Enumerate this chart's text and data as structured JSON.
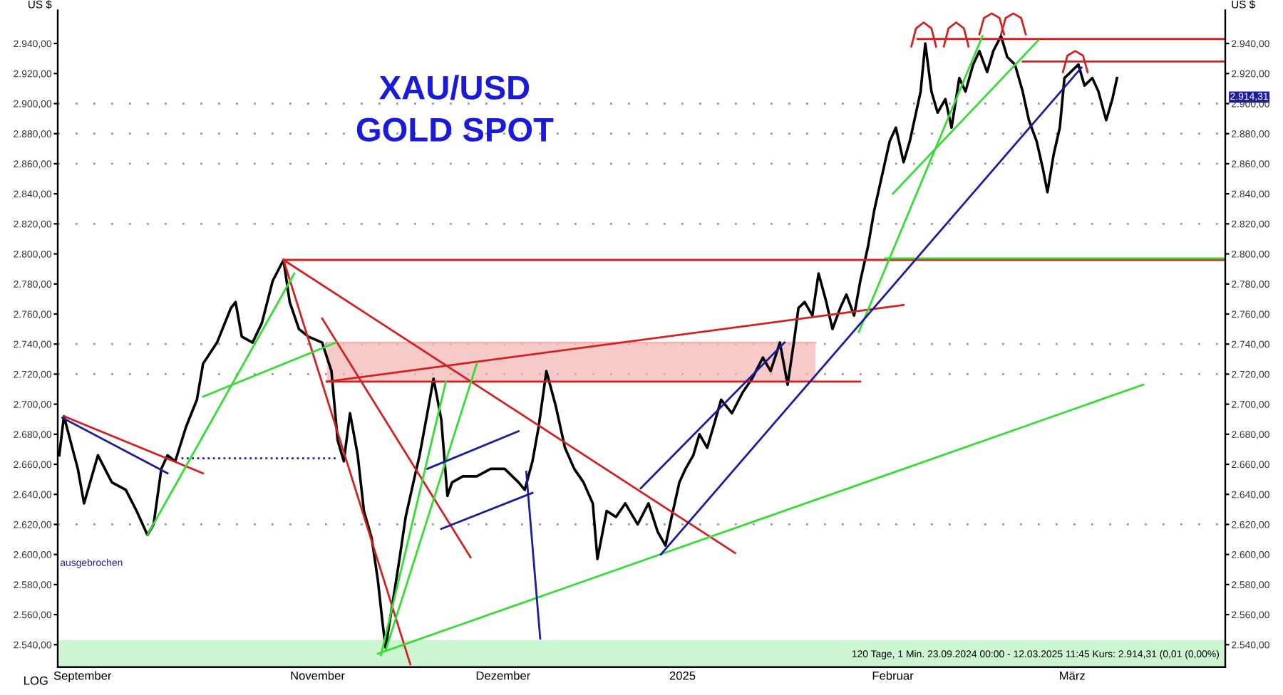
{
  "chart_data": {
    "type": "line",
    "title": "XAU/USD",
    "subtitle": "GOLD SPOT",
    "ylabel": "US $",
    "y2label": "US $",
    "xlim": [
      "2024-09-23",
      "2025-03-30T18:00"
    ],
    "ylim": [
      2525,
      2962
    ],
    "y2lim": [
      2525,
      2962
    ],
    "xticks": [
      {
        "value": "2024-09-27",
        "label": "September"
      },
      {
        "value": "2024-11-04",
        "label": "November"
      },
      {
        "value": "2024-12-04",
        "label": "Dezember"
      },
      {
        "value": "2025-01-02",
        "label": "2025"
      },
      {
        "value": "2025-02-05",
        "label": "Februar"
      },
      {
        "value": "2025-03-06",
        "label": "März"
      }
    ],
    "yticks": [
      {
        "value": 2540,
        "label": "2.540,00"
      },
      {
        "value": 2560,
        "label": "2.560,00"
      },
      {
        "value": 2580,
        "label": "2.580,00"
      },
      {
        "value": 2600,
        "label": "2.600,00"
      },
      {
        "value": 2620,
        "label": "2.620,00"
      },
      {
        "value": 2640,
        "label": "2.640,00"
      },
      {
        "value": 2660,
        "label": "2.660,00"
      },
      {
        "value": 2680,
        "label": "2.680,00"
      },
      {
        "value": 2700,
        "label": "2.700,00"
      },
      {
        "value": 2720,
        "label": "2.720,00"
      },
      {
        "value": 2740,
        "label": "2.740,00"
      },
      {
        "value": 2760,
        "label": "2.760,00"
      },
      {
        "value": 2780,
        "label": "2.780,00"
      },
      {
        "value": 2800,
        "label": "2.800,00"
      },
      {
        "value": 2820,
        "label": "2.820,00"
      },
      {
        "value": 2840,
        "label": "2.840,00"
      },
      {
        "value": 2860,
        "label": "2.860,00"
      },
      {
        "value": 2880,
        "label": "2.880,00"
      },
      {
        "value": 2900,
        "label": "2.900,00"
      },
      {
        "value": 2920,
        "label": "2.920,00"
      },
      {
        "value": 2940,
        "label": "2.940,00"
      }
    ],
    "y2ticks": [
      {
        "value": 2540,
        "label": "2.540,00"
      },
      {
        "value": 2560,
        "label": "2.560,00"
      },
      {
        "value": 2580,
        "label": "2.580,00"
      },
      {
        "value": 2600,
        "label": "2.600,00"
      },
      {
        "value": 2620,
        "label": "2.620,00"
      },
      {
        "value": 2640,
        "label": "2.640,00"
      },
      {
        "value": 2660,
        "label": "2.660,00"
      },
      {
        "value": 2680,
        "label": "2.680,00"
      },
      {
        "value": 2700,
        "label": "2.700,00"
      },
      {
        "value": 2720,
        "label": "2.720,00"
      },
      {
        "value": 2740,
        "label": "2.740,00"
      },
      {
        "value": 2760,
        "label": "2.760,00"
      },
      {
        "value": 2780,
        "label": "2.780,00"
      },
      {
        "value": 2800,
        "label": "2.800,00"
      },
      {
        "value": 2820,
        "label": "2.820,00"
      },
      {
        "value": 2840,
        "label": "2.840,00"
      },
      {
        "value": 2860,
        "label": "2.860,00"
      },
      {
        "value": 2880,
        "label": "2.880,00"
      },
      {
        "value": 2900,
        "label": "2.900,00"
      },
      {
        "value": 2920,
        "label": "2.920,00"
      },
      {
        "value": 2940,
        "label": "2.940,00"
      }
    ],
    "bands": [
      {
        "axis": "y",
        "from": 2525,
        "to": 2543,
        "color": "#ccf5d2"
      }
    ],
    "ref_lines": [
      {
        "axis": "y",
        "value": 2620,
        "color": "#999999",
        "line_style": "dotted"
      },
      {
        "axis": "y",
        "value": 2720,
        "color": "#999999",
        "line_style": "dotted"
      },
      {
        "axis": "y",
        "value": 2740,
        "color": "#999999",
        "line_style": "dotted"
      },
      {
        "axis": "y",
        "value": 2820,
        "color": "#999999",
        "line_style": "dotted"
      },
      {
        "axis": "y",
        "value": 2860,
        "color": "#999999",
        "line_style": "dotted"
      },
      {
        "axis": "y",
        "value": 2880,
        "color": "#999999",
        "line_style": "dotted"
      },
      {
        "axis": "y",
        "value": 2900,
        "color": "#999999",
        "line_style": "dotted"
      }
    ],
    "annotations": [
      "LOG",
      "120 Tage, 1 Min. 23.09.2024 00:00 - 12.03.2025 11:45 Kurs: 2.914,31 (0,01 (0,00%)",
      "2.914,31",
      "ausgebrochen"
    ],
    "series": [
      {
        "color": "#f4b4b4",
        "x": [
          "2024-11-05T12:00",
          "2025-01-23T12:00"
        ],
        "values": [
          2741,
          2741
        ],
        "lower": [
          2715,
          2715
        ],
        "upper": [
          2741,
          2741
        ]
      },
      {
        "color": "#000000",
        "x": [
          "2024-09-23T06:00",
          "2024-09-24",
          "2024-09-26T06:00",
          "2024-09-27T06:00",
          "2024-09-29T12:00",
          "2024-10-01T18:00",
          "2024-10-04",
          "2024-10-05T18:00",
          "2024-10-07T12:00",
          "2024-10-08T12:00",
          "2024-10-09T18:00",
          "2024-10-10T18:00",
          "2024-10-12",
          "2024-10-13T18:00",
          "2024-10-15T12:00",
          "2024-10-16T12:00",
          "2024-10-18T18:00",
          "2024-10-21",
          "2024-10-21T18:00",
          "2024-10-22T18:00",
          "2024-10-24T12:00",
          "2024-10-26",
          "2024-10-27T18:00",
          "2024-10-29T12:00",
          "2024-10-30T12:00",
          "2024-11-01",
          "2024-11-02T12:00",
          "2024-11-04T18:00",
          "2024-11-06T06:00",
          "2024-11-07T06:00",
          "2024-11-08T06:00",
          "2024-11-09T06:00",
          "2024-11-10T12:00",
          "2024-11-11T12:00",
          "2024-11-12T18:00",
          "2024-11-13T18:00",
          "2024-11-14T12:00",
          "2024-11-15",
          "2024-11-16",
          "2024-11-17T06:00",
          "2024-11-18T06:00",
          "2024-11-19T12:00",
          "2024-11-20T12:00",
          "2024-11-21T18:00",
          "2024-11-22T18:00",
          "2024-11-24",
          "2024-11-25",
          "2024-11-25T18:00",
          "2024-11-27T12:00",
          "2024-11-29T18:00",
          "2024-12-02",
          "2024-12-04T06:00",
          "2024-12-06T12:00",
          "2024-12-07T12:00",
          "2024-12-08T18:00",
          "2024-12-09T18:00",
          "2024-12-11",
          "2024-12-12T12:00",
          "2024-12-14",
          "2024-12-15T12:00",
          "2024-12-17",
          "2024-12-18T12:00",
          "2024-12-19T06:00",
          "2024-12-20T18:00",
          "2024-12-22T06:00",
          "2024-12-23T18:00",
          "2024-12-25T18:00",
          "2024-12-27T12:00",
          "2024-12-29",
          "2024-12-30T06:00",
          "2024-12-31T06:00",
          "2025-01-01T12:00",
          "2025-01-02T12:00",
          "2025-01-03T18:00",
          "2025-01-04T18:00",
          "2025-01-06",
          "2025-01-07",
          "2025-01-08T06:00",
          "2025-01-10",
          "2025-01-11T18:00",
          "2025-01-13T06:00",
          "2025-01-15",
          "2025-01-16T06:00",
          "2025-01-17T18:00",
          "2025-01-19",
          "2025-01-20",
          "2025-01-20T18:00",
          "2025-01-21T18:00",
          "2025-01-23",
          "2025-01-24",
          "2025-01-25T06:00",
          "2025-01-26T06:00",
          "2025-01-27T12:00",
          "2025-01-28T12:00",
          "2025-01-29T18:00",
          "2025-01-30T18:00",
          "2025-02-01",
          "2025-02-02",
          "2025-02-03T06:00",
          "2025-02-04T12:00",
          "2025-02-05T12:00",
          "2025-02-06T18:00",
          "2025-02-07T18:00",
          "2025-02-09T12:00",
          "2025-02-10T06:00",
          "2025-02-11T06:00",
          "2025-02-12T06:00",
          "2025-02-13T12:00",
          "2025-02-14T12:00",
          "2025-02-15T18:00",
          "2025-02-16T18:00",
          "2025-02-18",
          "2025-02-19",
          "2025-02-20T06:00",
          "2025-02-21T06:00",
          "2025-02-22T12:00",
          "2025-02-23T12:00",
          "2025-02-24T18:00",
          "2025-02-26",
          "2025-02-27",
          "2025-02-28T06:00",
          "2025-03-01T06:00",
          "2025-03-02",
          "2025-03-03",
          "2025-03-04",
          "2025-03-04T18:00",
          "2025-03-05T18:00",
          "2025-03-07",
          "2025-03-08",
          "2025-03-09T06:00",
          "2025-03-10T06:00",
          "2025-03-11T12:00",
          "2025-03-12T12:00",
          "2025-03-13T06:00"
        ],
        "values": [
          2666,
          2692,
          2657,
          2634,
          2666,
          2648,
          2643,
          2629,
          2613,
          2620,
          2657,
          2666,
          2662,
          2685,
          2703,
          2727,
          2741,
          2764,
          2768,
          2745,
          2741,
          2754,
          2782,
          2796,
          2768,
          2750,
          2745,
          2741,
          2722,
          2676,
          2662,
          2694,
          2666,
          2629,
          2611,
          2583,
          2555,
          2538,
          2564,
          2597,
          2625,
          2648,
          2666,
          2694,
          2717,
          2690,
          2639,
          2648,
          2652,
          2652,
          2657,
          2657,
          2648,
          2643,
          2662,
          2685,
          2722,
          2699,
          2671,
          2657,
          2648,
          2634,
          2597,
          2629,
          2625,
          2634,
          2620,
          2634,
          2615,
          2606,
          2625,
          2648,
          2657,
          2666,
          2680,
          2671,
          2685,
          2703,
          2694,
          2708,
          2717,
          2731,
          2722,
          2741,
          2713,
          2741,
          2764,
          2768,
          2759,
          2787,
          2768,
          2750,
          2764,
          2773,
          2759,
          2782,
          2805,
          2829,
          2852,
          2875,
          2884,
          2861,
          2875,
          2908,
          2940,
          2908,
          2894,
          2903,
          2884,
          2917,
          2908,
          2926,
          2935,
          2921,
          2935,
          2945,
          2931,
          2926,
          2908,
          2889,
          2875,
          2857,
          2841,
          2866,
          2884,
          2917,
          2921,
          2926,
          2912,
          2917,
          2908,
          2889,
          2903,
          2917
        ]
      },
      {
        "color": "#d42020",
        "x": [
          "2024-09-24",
          "2024-10-16T12:00"
        ],
        "values": [
          2692,
          2654
        ]
      },
      {
        "color": "#d42020",
        "x": [
          "2024-10-29T12:00",
          "2025-03-30T18:00"
        ],
        "values": [
          2796,
          2796
        ]
      },
      {
        "color": "#d42020",
        "x": [
          "2024-10-29T12:00",
          "2025-01-10T12:00"
        ],
        "values": [
          2796,
          2601
        ]
      },
      {
        "color": "#d42020",
        "x": [
          "2024-10-29T12:00",
          "2024-11-19"
        ],
        "values": [
          2796,
          2527
        ]
      },
      {
        "color": "#d42020",
        "x": [
          "2024-11-04T18:00",
          "2024-11-28T18:00"
        ],
        "values": [
          2757,
          2598
        ]
      },
      {
        "color": "#d42020",
        "x": [
          "2024-11-05T12:00",
          "2025-01-30T18:00"
        ],
        "values": [
          2715,
          2715
        ]
      },
      {
        "color": "#d42020",
        "x": [
          "2024-11-05T12:00",
          "2025-02-06T18:00"
        ],
        "values": [
          2715,
          2766
        ]
      },
      {
        "color": "#d42020",
        "x": [
          "2025-02-09",
          "2025-03-30T18:00"
        ],
        "values": [
          2943,
          2943
        ]
      },
      {
        "color": "#d42020",
        "x": [
          "2025-02-26",
          "2025-03-30T18:00"
        ],
        "values": [
          2928,
          2928
        ]
      },
      {
        "color": "#d42020",
        "x": [
          "2025-02-08",
          "2025-02-08T18:00",
          "2025-02-10",
          "2025-02-11T06:00",
          "2025-02-12"
        ],
        "values": [
          2938,
          2950,
          2954,
          2950,
          2938
        ]
      },
      {
        "color": "#d42020",
        "x": [
          "2025-02-13T06:00",
          "2025-02-14",
          "2025-02-15T06:00",
          "2025-02-16T12:00",
          "2025-02-17T06:00"
        ],
        "values": [
          2938,
          2950,
          2954,
          2950,
          2938
        ]
      },
      {
        "color": "#d42020",
        "x": [
          "2025-02-19",
          "2025-02-19T18:00",
          "2025-02-21",
          "2025-02-22T06:00",
          "2025-02-23"
        ],
        "values": [
          2946,
          2957,
          2960,
          2957,
          2946
        ]
      },
      {
        "color": "#d42020",
        "x": [
          "2025-02-22T12:00",
          "2025-02-23T06:00",
          "2025-02-24T12:00",
          "2025-02-25T18:00",
          "2025-02-26T12:00"
        ],
        "values": [
          2946,
          2957,
          2960,
          2957,
          2946
        ]
      },
      {
        "color": "#d42020",
        "x": [
          "2025-03-04T12:00",
          "2025-03-05T06:00",
          "2025-03-06T12:00",
          "2025-03-07T18:00",
          "2025-03-08T12:00"
        ],
        "values": [
          2921,
          2932,
          2935,
          2932,
          2921
        ]
      },
      {
        "color": "#33dd33",
        "x": [
          "2024-10-07T12:00",
          "2024-10-31T06:00"
        ],
        "values": [
          2613,
          2787
        ]
      },
      {
        "color": "#33dd33",
        "x": [
          "2024-10-16T12:00",
          "2024-11-07"
        ],
        "values": [
          2705,
          2741
        ]
      },
      {
        "color": "#33dd33",
        "x": [
          "2024-11-15",
          "2024-11-29T18:00"
        ],
        "values": [
          2536,
          2727
        ]
      },
      {
        "color": "#33dd33",
        "x": [
          "2024-11-14T06:00",
          "2024-11-24T18:00"
        ],
        "values": [
          2533,
          2715
        ]
      },
      {
        "color": "#33dd33",
        "x": [
          "2024-11-13T18:00",
          "2025-03-17T12:00"
        ],
        "values": [
          2534,
          2713
        ]
      },
      {
        "color": "#33dd33",
        "x": [
          "2025-01-30T12:00",
          "2025-02-19T12:00"
        ],
        "values": [
          2748,
          2945
        ]
      },
      {
        "color": "#33dd33",
        "x": [
          "2025-02-05",
          "2025-02-28T12:00"
        ],
        "values": [
          2840,
          2942
        ]
      },
      {
        "color": "#33dd33",
        "x": [
          "2025-02-03T18:00",
          "2025-03-30T18:00"
        ],
        "values": [
          2797,
          2797
        ]
      },
      {
        "color": "#1c1ca0",
        "x": [
          "2024-09-23T18:00",
          "2024-10-10T18:00"
        ],
        "values": [
          2691,
          2654
        ]
      },
      {
        "color": "#1c1ca0",
        "line_style": "dotted",
        "x": [
          "2024-10-13",
          "2024-11-07"
        ],
        "values": [
          2664,
          2664
        ]
      },
      {
        "color": "#1c1ca0",
        "x": [
          "2024-11-21T18:00",
          "2024-12-06T12:00"
        ],
        "values": [
          2657,
          2682
        ]
      },
      {
        "color": "#1c1ca0",
        "x": [
          "2024-11-24",
          "2024-12-08T18:00"
        ],
        "values": [
          2617,
          2641
        ]
      },
      {
        "color": "#1c1ca0",
        "x": [
          "2024-12-07T18:00",
          "2024-12-10"
        ],
        "values": [
          2655,
          2544
        ]
      },
      {
        "color": "#1c1ca0",
        "x": [
          "2024-12-26T06:00",
          "2025-01-18T12:00"
        ],
        "values": [
          2644,
          2741
        ]
      },
      {
        "color": "#1c1ca0",
        "x": [
          "2024-12-29T12:00",
          "2025-03-07T12:00"
        ],
        "values": [
          2600,
          2924
        ]
      }
    ]
  }
}
